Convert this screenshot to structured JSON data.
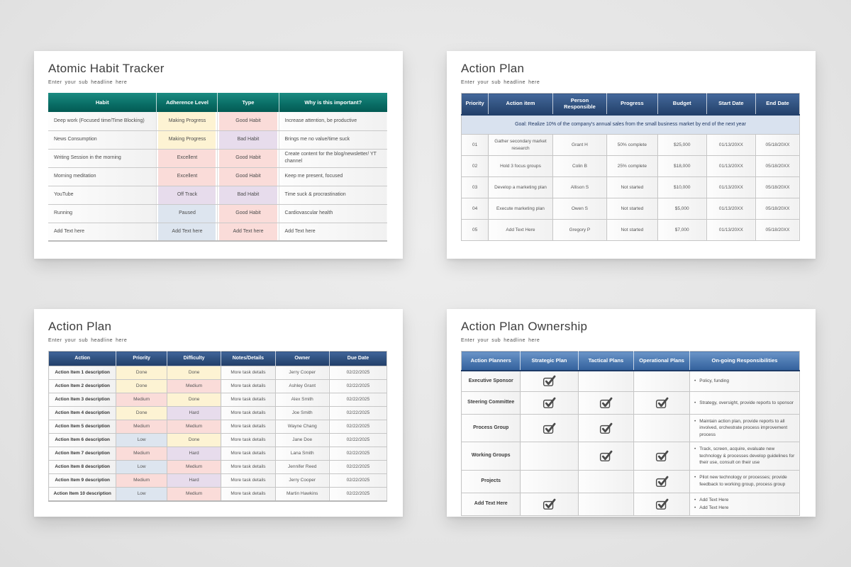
{
  "colors": {
    "yellow": "#fdf3d3",
    "pink": "#fadcd9",
    "lavender": "#e7dcec",
    "blue": "#dde5ef",
    "teal_header": "#0a6f67",
    "navy_header": "#2e4f7d",
    "light_blue_header": "#4a77af",
    "goal_row_bg": "#d9e2ef",
    "goal_row_text": "#1f3864",
    "check_icon": "#4a4a4a"
  },
  "habit": {
    "title": "Atomic Habit Tracker",
    "subtitle": "Enter your sub headline here",
    "columns": [
      "Habit",
      "Adherence Level",
      "Type",
      "Why is this important?"
    ],
    "rows": [
      {
        "habit": "Deep work (Focused time/Time Blocking)",
        "adherence": "Making Progress",
        "adherence_color": "yellow",
        "type": "Good Habit",
        "type_color": "pink",
        "why": "Increase attention, be productive"
      },
      {
        "habit": "News Consumption",
        "adherence": "Making Progress",
        "adherence_color": "yellow",
        "type": "Bad Habit",
        "type_color": "lavender",
        "why": "Brings me no value/time suck"
      },
      {
        "habit": "Writing Session in the morning",
        "adherence": "Excellent",
        "adherence_color": "pink",
        "type": "Good Habit",
        "type_color": "pink",
        "why": "Create content for the blog/newsletter/ YT channel"
      },
      {
        "habit": "Morning meditation",
        "adherence": "Excellent",
        "adherence_color": "pink",
        "type": "Good Habit",
        "type_color": "pink",
        "why": "Keep me present, focused"
      },
      {
        "habit": "YouTube",
        "adherence": "Off Track",
        "adherence_color": "lavender",
        "type": "Bad Habit",
        "type_color": "lavender",
        "why": "Time suck & procrastination"
      },
      {
        "habit": "Running",
        "adherence": "Paused",
        "adherence_color": "blue",
        "type": "Good Habit",
        "type_color": "pink",
        "why": "Cardiovascular health"
      },
      {
        "habit": "Add Text here",
        "adherence": "Add Text here",
        "adherence_color": "blue",
        "type": "Add Text here",
        "type_color": "pink",
        "why": "Add Text here"
      }
    ]
  },
  "plan_top": {
    "title": "Action Plan",
    "subtitle": "Enter your sub headline here",
    "columns": [
      "Priority",
      "Action item",
      "Person Responsible",
      "Progress",
      "Budget",
      "Start Date",
      "End Date"
    ],
    "goal": "Goal: Realize 10% of the company's annual sales from the small business market by end of the next year",
    "rows": [
      {
        "priority": "01",
        "item": "Gather secondary market research",
        "person": "Grant H",
        "progress": "50% complete",
        "budget": "$25,000",
        "start": "01/13/20XX",
        "end": "05/18/20XX"
      },
      {
        "priority": "02",
        "item": "Hold 3 focus groups",
        "person": "Colin B",
        "progress": "25% complete",
        "budget": "$18,000",
        "start": "01/13/20XX",
        "end": "05/18/20XX"
      },
      {
        "priority": "03",
        "item": "Develop a marketing plan",
        "person": "Allison S",
        "progress": "Not started",
        "budget": "$10,000",
        "start": "01/13/20XX",
        "end": "05/18/20XX"
      },
      {
        "priority": "04",
        "item": "Execute marketing plan",
        "person": "Owen S",
        "progress": "Not started",
        "budget": "$5,000",
        "start": "01/13/20XX",
        "end": "05/18/20XX"
      },
      {
        "priority": "05",
        "item": "Add Text Here",
        "person": "Gregory P",
        "progress": "Not started",
        "budget": "$7,000",
        "start": "01/13/20XX",
        "end": "05/18/20XX"
      }
    ]
  },
  "plan_bottom": {
    "title": "Action Plan",
    "subtitle": "Enter your sub headline here",
    "columns": [
      "Action",
      "Priority",
      "Difficulty",
      "Notes/Details",
      "Owner",
      "Due Date"
    ],
    "rows": [
      {
        "action": "Action Item 1 description",
        "priority": "Done",
        "priority_color": "yellow",
        "difficulty": "Done",
        "difficulty_color": "yellow",
        "notes": "More task details",
        "owner": "Jerry Cooper",
        "due": "02/22/2025"
      },
      {
        "action": "Action Item 2 description",
        "priority": "Done",
        "priority_color": "yellow",
        "difficulty": "Medium",
        "difficulty_color": "pink",
        "notes": "More task details",
        "owner": "Ashley Grant",
        "due": "02/22/2025"
      },
      {
        "action": "Action Item 3 description",
        "priority": "Medium",
        "priority_color": "pink",
        "difficulty": "Done",
        "difficulty_color": "yellow",
        "notes": "More task details",
        "owner": "Alex Smith",
        "due": "02/22/2025"
      },
      {
        "action": "Action Item 4 description",
        "priority": "Done",
        "priority_color": "yellow",
        "difficulty": "Hard",
        "difficulty_color": "lavender",
        "notes": "More task details",
        "owner": "Joe Smith",
        "due": "02/22/2025"
      },
      {
        "action": "Action Item 5 description",
        "priority": "Medium",
        "priority_color": "pink",
        "difficulty": "Medium",
        "difficulty_color": "pink",
        "notes": "More task details",
        "owner": "Wayne Chang",
        "due": "02/22/2025"
      },
      {
        "action": "Action Item 6 description",
        "priority": "Low",
        "priority_color": "blue",
        "difficulty": "Done",
        "difficulty_color": "yellow",
        "notes": "More task details",
        "owner": "Jane Doe",
        "due": "02/22/2025"
      },
      {
        "action": "Action Item 7 description",
        "priority": "Medium",
        "priority_color": "pink",
        "difficulty": "Hard",
        "difficulty_color": "lavender",
        "notes": "More task details",
        "owner": "Lana Smith",
        "due": "02/22/2025"
      },
      {
        "action": "Action Item 8 description",
        "priority": "Low",
        "priority_color": "blue",
        "difficulty": "Medium",
        "difficulty_color": "pink",
        "notes": "More task details",
        "owner": "Jennifer Reed",
        "due": "02/22/2025"
      },
      {
        "action": "Action Item 9 description",
        "priority": "Medium",
        "priority_color": "pink",
        "difficulty": "Hard",
        "difficulty_color": "lavender",
        "notes": "More task details",
        "owner": "Jerry Cooper",
        "due": "02/22/2025"
      },
      {
        "action": "Action Item 10 description",
        "priority": "Low",
        "priority_color": "blue",
        "difficulty": "Medium",
        "difficulty_color": "pink",
        "notes": "More task details",
        "owner": "Martin Hawkins",
        "due": "02/22/2025"
      }
    ]
  },
  "ownership": {
    "title": "Action Plan Ownership",
    "subtitle": "Enter your sub headline here",
    "columns": [
      "Action Planners",
      "Strategic Plan",
      "Tactical Plans",
      "Operational Plans",
      "On-going Responsibilities"
    ],
    "rows": [
      {
        "planner": "Executive Sponsor",
        "strategic": true,
        "tactical": false,
        "operational": false,
        "responsibilities": [
          "Policy, funding"
        ]
      },
      {
        "planner": "Steering Committee",
        "strategic": true,
        "tactical": true,
        "operational": true,
        "responsibilities": [
          "Strategy, oversight, provide reports to sponsor"
        ]
      },
      {
        "planner": "Process Group",
        "strategic": true,
        "tactical": true,
        "operational": false,
        "responsibilities": [
          "Maintain action plan, provide reports to all involved, orchestrate process improvement process"
        ]
      },
      {
        "planner": "Working Groups",
        "strategic": false,
        "tactical": true,
        "operational": true,
        "responsibilities": [
          "Track, screen, acquire, evaluate new technology & processes develop guidelines for their use, consult on their use"
        ]
      },
      {
        "planner": "Projects",
        "strategic": false,
        "tactical": false,
        "operational": true,
        "responsibilities": [
          "Pilot new technology or processes; provide feedback to working group, process group"
        ]
      },
      {
        "planner": "Add Text Here",
        "strategic": true,
        "tactical": false,
        "operational": true,
        "responsibilities": [
          "Add Text Here",
          "Add Text Here"
        ]
      }
    ]
  }
}
